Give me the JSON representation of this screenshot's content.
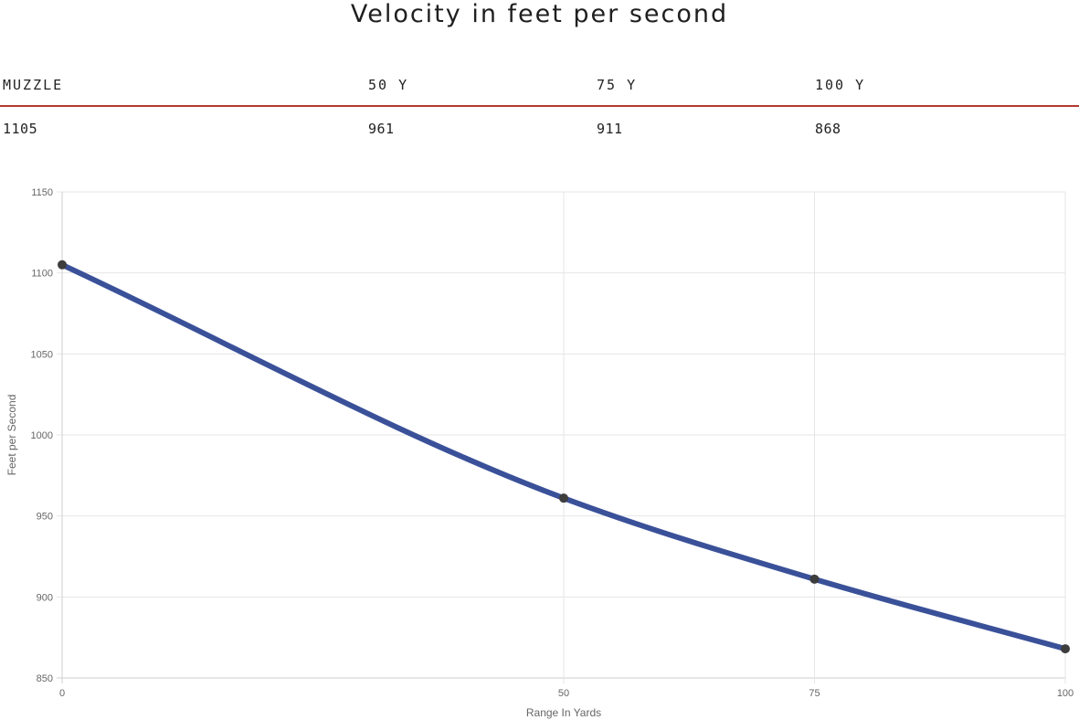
{
  "title": "Velocity in feet per second",
  "velocity_table": {
    "headers": [
      "MUZZLE",
      "50 Y",
      "75 Y",
      "100 Y"
    ],
    "values": [
      "1105",
      "961",
      "911",
      "868"
    ]
  },
  "chart_data": {
    "type": "line",
    "title": "",
    "xlabel": "Range In Yards",
    "ylabel": "Feet per Second",
    "x": [
      0,
      50,
      75,
      100
    ],
    "series": [
      {
        "values": [
          1105,
          961,
          911,
          868
        ]
      }
    ],
    "xticks": [
      0,
      50,
      75,
      100
    ],
    "yticks": [
      850,
      900,
      950,
      1000,
      1050,
      1100,
      1150
    ],
    "xlim": [
      0,
      100
    ],
    "ylim": [
      850,
      1150
    ],
    "grid": true,
    "legend": "none",
    "colors": {
      "line": "#3a5199",
      "point": "#3d3d3d",
      "grid": "#e6e6e6"
    }
  }
}
